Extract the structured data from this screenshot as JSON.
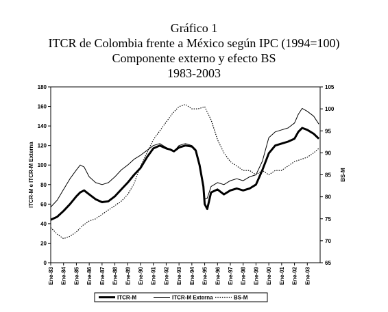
{
  "title_lines": [
    "Gráfico 1",
    "ITCR de Colombia frente a México según IPC  (1994=100)",
    "Componente externo y efecto BS",
    "1983-2003"
  ],
  "chart_data": {
    "type": "line",
    "title": "ITCR de Colombia frente a México según IPC  (1994=100)",
    "subtitle": "Componente externo y efecto BS 1983-2003",
    "ylabel_left": "ITCR-M  e  ITCR-M Externa",
    "ylabel_right": "BS-M",
    "ylim_left": [
      0,
      180
    ],
    "ylim_right": [
      65,
      105
    ],
    "yticks_left": [
      "0",
      "20",
      "40",
      "60",
      "80",
      "100",
      "120",
      "140",
      "160",
      "180"
    ],
    "yticks_right": [
      "65",
      "70",
      "75",
      "80",
      "85",
      "90",
      "95",
      "100",
      "105"
    ],
    "grid": false,
    "legend_placement": "bottom",
    "x_range": [
      1983.0,
      2004.0
    ],
    "x_ticks": [
      "Ene-83",
      "Ene-84",
      "Ene-85",
      "Ene-86",
      "Ene-87",
      "Ene-88",
      "Ene-89",
      "Ene-90",
      "Ene-91",
      "Ene-92",
      "Ene-93",
      "Ene-94",
      "Ene-95",
      "Ene-96",
      "Ene-97",
      "Ene-98",
      "Ene-99",
      "Ene-00",
      "Ene-01",
      "Ene-02",
      "Ene-03"
    ],
    "series": [
      {
        "name": "ITCR-M",
        "axis": "left",
        "style": "thick",
        "color": "#000000",
        "x": [
          1983.0,
          1983.5,
          1984.0,
          1984.5,
          1985.0,
          1985.3,
          1985.6,
          1986.0,
          1986.5,
          1987.0,
          1987.5,
          1988.0,
          1988.5,
          1989.0,
          1989.5,
          1990.0,
          1990.5,
          1991.0,
          1991.5,
          1992.0,
          1992.3,
          1992.6,
          1993.0,
          1993.5,
          1994.0,
          1994.3,
          1994.6,
          1994.9,
          1995.0,
          1995.2,
          1995.5,
          1996.0,
          1996.5,
          1997.0,
          1997.5,
          1998.0,
          1998.5,
          1999.0,
          1999.5,
          2000.0,
          2000.5,
          2001.0,
          2001.5,
          2002.0,
          2002.3,
          2002.6,
          2003.0,
          2003.5,
          2003.9
        ],
        "y": [
          44,
          47,
          53,
          60,
          68,
          72,
          74,
          70,
          65,
          62,
          63,
          68,
          75,
          82,
          90,
          97,
          108,
          117,
          120,
          117,
          116,
          114,
          118,
          120,
          119,
          115,
          100,
          78,
          60,
          55,
          72,
          75,
          70,
          74,
          76,
          74,
          76,
          80,
          95,
          112,
          120,
          122,
          124,
          127,
          134,
          138,
          136,
          132,
          127
        ]
      },
      {
        "name": "ITCR-M Externa",
        "axis": "left",
        "style": "thin",
        "color": "#000000",
        "x": [
          1983.0,
          1983.5,
          1984.0,
          1984.5,
          1985.0,
          1985.3,
          1985.6,
          1986.0,
          1986.5,
          1987.0,
          1987.5,
          1988.0,
          1988.5,
          1989.0,
          1989.5,
          1990.0,
          1990.5,
          1991.0,
          1991.5,
          1992.0,
          1992.3,
          1992.6,
          1993.0,
          1993.5,
          1994.0,
          1994.3,
          1994.6,
          1994.9,
          1995.0,
          1995.2,
          1995.5,
          1996.0,
          1996.5,
          1997.0,
          1997.5,
          1998.0,
          1998.5,
          1999.0,
          1999.5,
          2000.0,
          2000.5,
          2001.0,
          2001.5,
          2002.0,
          2002.3,
          2002.6,
          2003.0,
          2003.5,
          2003.9
        ],
        "y": [
          57,
          64,
          75,
          86,
          95,
          100,
          98,
          88,
          82,
          80,
          82,
          88,
          95,
          100,
          106,
          110,
          115,
          120,
          122,
          118,
          116,
          114,
          120,
          122,
          120,
          116,
          100,
          80,
          65,
          66,
          78,
          82,
          80,
          84,
          86,
          84,
          88,
          90,
          104,
          128,
          134,
          136,
          138,
          143,
          152,
          158,
          155,
          150,
          142
        ]
      },
      {
        "name": "BS-M",
        "axis": "right",
        "style": "dotted",
        "color": "#000000",
        "x": [
          1983.0,
          1983.5,
          1984.0,
          1984.5,
          1985.0,
          1985.5,
          1986.0,
          1986.5,
          1987.0,
          1987.5,
          1988.0,
          1988.5,
          1989.0,
          1989.5,
          1990.0,
          1990.5,
          1991.0,
          1991.5,
          1992.0,
          1992.5,
          1993.0,
          1993.5,
          1994.0,
          1994.5,
          1995.0,
          1995.5,
          1996.0,
          1996.5,
          1997.0,
          1997.5,
          1998.0,
          1998.5,
          1999.0,
          1999.5,
          2000.0,
          2000.5,
          2001.0,
          2001.5,
          2002.0,
          2002.5,
          2003.0,
          2003.5,
          2003.9
        ],
        "y": [
          73,
          71.5,
          70.5,
          71,
          72,
          73.5,
          74.5,
          75,
          76,
          77,
          78,
          79,
          80.5,
          83,
          87,
          90,
          93,
          95,
          97,
          99,
          100.5,
          101,
          100,
          100,
          100.5,
          97.5,
          93,
          90,
          88,
          87,
          86,
          86,
          85,
          86,
          85,
          86,
          86,
          87,
          88,
          88.5,
          89,
          90,
          91
        ]
      }
    ]
  }
}
